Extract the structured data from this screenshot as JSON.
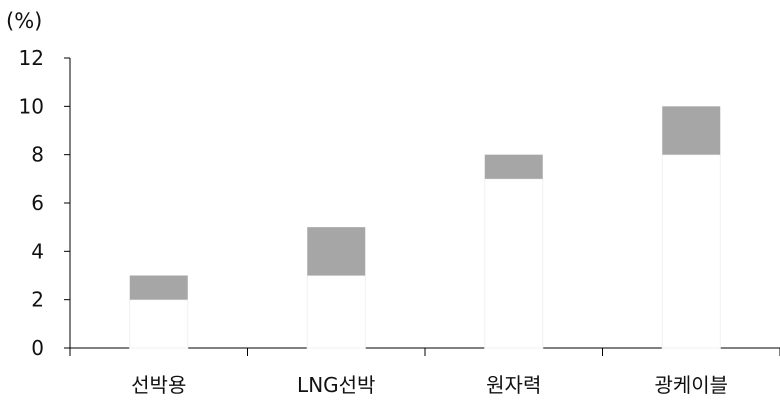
{
  "chart_data": {
    "type": "bar",
    "stacked": true,
    "unit": "(%)",
    "categories": [
      "선박용",
      "LNG선박",
      "원자력",
      "광케이블"
    ],
    "series": [
      {
        "values": [
          2,
          3,
          7,
          8
        ],
        "color": "#ffffff"
      },
      {
        "values": [
          1,
          2,
          1,
          2
        ],
        "color": "#a6a6a6"
      }
    ],
    "ylim": [
      0,
      12
    ],
    "yticks": [
      0,
      2,
      4,
      6,
      8,
      10,
      12
    ],
    "grid": false,
    "legend": "none"
  }
}
